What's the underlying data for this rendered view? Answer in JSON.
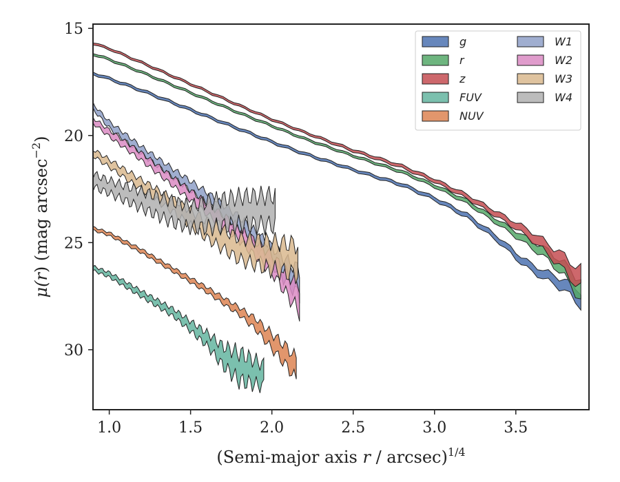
{
  "chart_data": {
    "type": "area",
    "xlabel_prefix": "(Semi-major axis ",
    "xlabel_var": "r",
    "xlabel_suffix": " / arcsec)",
    "xlabel_sup": "1/4",
    "ylabel_prefix": "μ(",
    "ylabel_var": "r",
    "ylabel_suffix": ") (mag arcsec",
    "ylabel_sup": "−2",
    "ylabel_close": ")",
    "xlim": [
      0.9,
      3.95
    ],
    "ylim": [
      32.8,
      14.8
    ],
    "y_inverted": true,
    "xticks": [
      1.0,
      1.5,
      2.0,
      2.5,
      3.0,
      3.5
    ],
    "xtick_labels": [
      "1.0",
      "1.5",
      "2.0",
      "2.5",
      "3.0",
      "3.5"
    ],
    "yticks": [
      15,
      20,
      25,
      30
    ],
    "ytick_labels": [
      "15",
      "20",
      "25",
      "30"
    ],
    "legend_position": "top-right",
    "legend_columns": 2,
    "series": [
      {
        "name": "g",
        "color": "#4c72b0",
        "band_pts": [
          [
            0.9,
            17.1,
            0.12
          ],
          [
            1.0,
            17.35,
            0.12
          ],
          [
            1.2,
            17.9,
            0.12
          ],
          [
            1.5,
            18.8,
            0.12
          ],
          [
            1.8,
            19.7,
            0.12
          ],
          [
            2.0,
            20.3,
            0.12
          ],
          [
            2.2,
            20.85,
            0.12
          ],
          [
            2.5,
            21.6,
            0.12
          ],
          [
            2.8,
            22.3,
            0.14
          ],
          [
            3.0,
            22.95,
            0.16
          ],
          [
            3.2,
            23.75,
            0.2
          ],
          [
            3.4,
            24.9,
            0.25
          ],
          [
            3.5,
            25.6,
            0.3
          ],
          [
            3.6,
            26.2,
            0.35
          ],
          [
            3.7,
            26.6,
            0.4
          ],
          [
            3.8,
            27.0,
            0.5
          ],
          [
            3.9,
            27.6,
            0.7
          ]
        ]
      },
      {
        "name": "r",
        "color": "#55a868",
        "band_pts": [
          [
            0.9,
            16.2,
            0.1
          ],
          [
            1.0,
            16.45,
            0.1
          ],
          [
            1.2,
            17.05,
            0.1
          ],
          [
            1.5,
            18.0,
            0.1
          ],
          [
            1.8,
            18.95,
            0.1
          ],
          [
            2.0,
            19.55,
            0.1
          ],
          [
            2.2,
            20.15,
            0.1
          ],
          [
            2.5,
            20.95,
            0.1
          ],
          [
            2.8,
            21.7,
            0.12
          ],
          [
            3.0,
            22.35,
            0.14
          ],
          [
            3.2,
            23.1,
            0.18
          ],
          [
            3.4,
            24.1,
            0.22
          ],
          [
            3.5,
            24.6,
            0.28
          ],
          [
            3.6,
            25.1,
            0.35
          ],
          [
            3.7,
            25.6,
            0.45
          ],
          [
            3.8,
            26.3,
            0.6
          ],
          [
            3.9,
            27.2,
            0.9
          ]
        ]
      },
      {
        "name": "z",
        "color": "#c44e52",
        "band_pts": [
          [
            0.9,
            15.7,
            0.1
          ],
          [
            1.0,
            15.95,
            0.1
          ],
          [
            1.2,
            16.6,
            0.1
          ],
          [
            1.5,
            17.6,
            0.1
          ],
          [
            1.8,
            18.6,
            0.1
          ],
          [
            2.0,
            19.25,
            0.1
          ],
          [
            2.2,
            19.85,
            0.1
          ],
          [
            2.5,
            20.7,
            0.12
          ],
          [
            2.8,
            21.45,
            0.14
          ],
          [
            3.0,
            22.1,
            0.16
          ],
          [
            3.2,
            22.85,
            0.2
          ],
          [
            3.4,
            23.75,
            0.25
          ],
          [
            3.5,
            24.2,
            0.3
          ],
          [
            3.6,
            24.7,
            0.4
          ],
          [
            3.7,
            25.3,
            0.5
          ],
          [
            3.8,
            26.0,
            0.7
          ],
          [
            3.9,
            26.7,
            0.9
          ]
        ]
      },
      {
        "name": "FUV",
        "color": "#64b5a0",
        "band_pts": [
          [
            0.9,
            26.2,
            0.2
          ],
          [
            1.0,
            26.5,
            0.22
          ],
          [
            1.2,
            27.4,
            0.28
          ],
          [
            1.4,
            28.3,
            0.35
          ],
          [
            1.5,
            28.9,
            0.45
          ],
          [
            1.6,
            29.5,
            0.6
          ],
          [
            1.7,
            30.3,
            0.9
          ],
          [
            1.8,
            30.8,
            1.3
          ],
          [
            1.95,
            31.2,
            1.0
          ]
        ]
      },
      {
        "name": "NUV",
        "color": "#dd8452",
        "band_pts": [
          [
            0.9,
            24.35,
            0.15
          ],
          [
            1.0,
            24.6,
            0.15
          ],
          [
            1.2,
            25.4,
            0.18
          ],
          [
            1.4,
            26.3,
            0.2
          ],
          [
            1.6,
            27.2,
            0.25
          ],
          [
            1.8,
            28.2,
            0.35
          ],
          [
            1.9,
            28.8,
            0.5
          ],
          [
            2.0,
            29.6,
            0.7
          ],
          [
            2.1,
            30.4,
            0.9
          ],
          [
            2.15,
            30.9,
            1.0
          ]
        ]
      },
      {
        "name": "W1",
        "color": "#8fa0c8",
        "band_pts": [
          [
            0.9,
            18.65,
            0.25
          ],
          [
            1.0,
            19.5,
            0.3
          ],
          [
            1.2,
            20.7,
            0.35
          ],
          [
            1.4,
            21.8,
            0.4
          ],
          [
            1.6,
            22.9,
            0.5
          ],
          [
            1.8,
            24.1,
            0.6
          ],
          [
            2.0,
            25.6,
            0.8
          ],
          [
            2.1,
            26.4,
            1.0
          ],
          [
            2.17,
            26.9,
            1.2
          ]
        ]
      },
      {
        "name": "W2",
        "color": "#da8bc3",
        "band_pts": [
          [
            0.9,
            19.3,
            0.25
          ],
          [
            1.0,
            19.9,
            0.3
          ],
          [
            1.2,
            21.0,
            0.35
          ],
          [
            1.4,
            22.2,
            0.4
          ],
          [
            1.6,
            23.4,
            0.5
          ],
          [
            1.8,
            24.6,
            0.6
          ],
          [
            2.0,
            26.0,
            0.8
          ],
          [
            2.1,
            27.0,
            1.0
          ],
          [
            2.17,
            27.6,
            1.3
          ]
        ]
      },
      {
        "name": "W3",
        "color": "#d9b98e",
        "band_pts": [
          [
            0.9,
            20.8,
            0.3
          ],
          [
            1.0,
            21.3,
            0.35
          ],
          [
            1.2,
            22.3,
            0.45
          ],
          [
            1.4,
            23.3,
            0.6
          ],
          [
            1.6,
            24.4,
            0.8
          ],
          [
            1.8,
            25.3,
            1.0
          ],
          [
            2.0,
            25.6,
            1.3
          ],
          [
            2.16,
            25.8,
            1.4
          ]
        ]
      },
      {
        "name": "W4",
        "color": "#b0b0b0",
        "band_pts": [
          [
            0.9,
            22.1,
            0.6
          ],
          [
            1.0,
            22.4,
            0.6
          ],
          [
            1.1,
            22.7,
            0.7
          ],
          [
            1.2,
            23.0,
            0.8
          ],
          [
            1.4,
            23.6,
            1.0
          ],
          [
            1.5,
            23.8,
            1.0
          ],
          [
            1.6,
            23.7,
            1.2
          ],
          [
            1.8,
            23.5,
            1.3
          ],
          [
            2.02,
            23.5,
            1.4
          ]
        ]
      }
    ]
  }
}
